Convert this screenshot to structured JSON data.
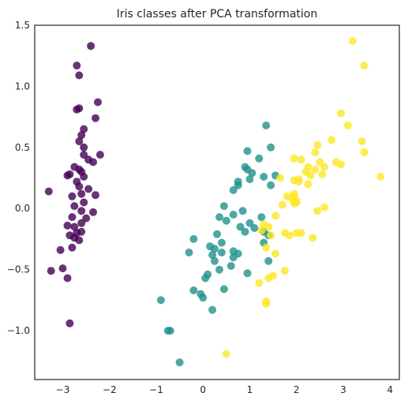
{
  "chart_data": {
    "type": "scatter",
    "title": "Iris classes after PCA transformation",
    "xlabel": "",
    "ylabel": "",
    "xlim": [
      -3.6,
      4.2
    ],
    "ylim": [
      -1.4,
      1.5
    ],
    "xticks": [
      -3,
      -2,
      -1,
      0,
      1,
      2,
      3,
      4
    ],
    "yticks": [
      -1.0,
      -0.5,
      0.0,
      0.5,
      1.0,
      1.5
    ],
    "xtick_labels": [
      "−3",
      "−2",
      "−1",
      "0",
      "1",
      "2",
      "3",
      "4"
    ],
    "ytick_labels": [
      "−1.0",
      "−0.5",
      "0.0",
      "0.5",
      "1.0",
      "1.5"
    ],
    "grid": false,
    "legend": "none",
    "series": [
      {
        "color": "#440154",
        "points": [
          [
            -2.4,
            1.33
          ],
          [
            -2.7,
            1.17
          ],
          [
            -2.65,
            1.09
          ],
          [
            -2.25,
            0.87
          ],
          [
            -2.65,
            0.82
          ],
          [
            -2.7,
            0.81
          ],
          [
            -2.3,
            0.74
          ],
          [
            -2.55,
            0.65
          ],
          [
            -2.6,
            0.6
          ],
          [
            -2.65,
            0.55
          ],
          [
            -2.55,
            0.5
          ],
          [
            -2.2,
            0.44
          ],
          [
            -2.55,
            0.44
          ],
          [
            -2.45,
            0.4
          ],
          [
            -2.35,
            0.38
          ],
          [
            -2.75,
            0.34
          ],
          [
            -2.65,
            0.32
          ],
          [
            -2.6,
            0.3
          ],
          [
            -2.85,
            0.28
          ],
          [
            -2.55,
            0.26
          ],
          [
            -2.9,
            0.27
          ],
          [
            -2.7,
            0.22
          ],
          [
            -2.65,
            0.18
          ],
          [
            -2.45,
            0.16
          ],
          [
            -3.3,
            0.14
          ],
          [
            -2.6,
            0.12
          ],
          [
            -2.3,
            0.11
          ],
          [
            -2.8,
            0.1
          ],
          [
            -2.55,
            0.05
          ],
          [
            -2.75,
            0.02
          ],
          [
            -2.6,
            -0.02
          ],
          [
            -2.35,
            -0.03
          ],
          [
            -2.8,
            -0.07
          ],
          [
            -2.5,
            -0.08
          ],
          [
            -2.6,
            -0.12
          ],
          [
            -2.9,
            -0.14
          ],
          [
            -2.75,
            -0.15
          ],
          [
            -2.6,
            -0.19
          ],
          [
            -2.7,
            -0.2
          ],
          [
            -2.85,
            -0.22
          ],
          [
            -2.75,
            -0.24
          ],
          [
            -2.65,
            -0.26
          ],
          [
            -2.8,
            -0.32
          ],
          [
            -3.05,
            -0.34
          ],
          [
            -3.0,
            -0.49
          ],
          [
            -3.25,
            -0.51
          ],
          [
            -2.9,
            -0.57
          ],
          [
            -2.85,
            -0.94
          ]
        ]
      },
      {
        "color": "#21918c",
        "points": [
          [
            1.35,
            0.68
          ],
          [
            1.45,
            0.5
          ],
          [
            0.95,
            0.47
          ],
          [
            1.2,
            0.41
          ],
          [
            0.9,
            0.34
          ],
          [
            0.95,
            0.32
          ],
          [
            1.55,
            0.27
          ],
          [
            1.3,
            0.26
          ],
          [
            1.05,
            0.29
          ],
          [
            1.0,
            0.24
          ],
          [
            0.75,
            0.22
          ],
          [
            0.75,
            0.19
          ],
          [
            1.45,
            0.19
          ],
          [
            0.65,
            0.15
          ],
          [
            0.45,
            0.02
          ],
          [
            0.85,
            -0.02
          ],
          [
            0.65,
            -0.05
          ],
          [
            0.35,
            -0.07
          ],
          [
            1.25,
            -0.07
          ],
          [
            0.5,
            -0.1
          ],
          [
            1.0,
            -0.12
          ],
          [
            0.8,
            -0.15
          ],
          [
            1.1,
            -0.16
          ],
          [
            0.9,
            -0.19
          ],
          [
            1.3,
            -0.19
          ],
          [
            1.4,
            -0.22
          ],
          [
            0.3,
            -0.21
          ],
          [
            -0.2,
            -0.25
          ],
          [
            0.4,
            -0.28
          ],
          [
            1.3,
            -0.28
          ],
          [
            0.15,
            -0.31
          ],
          [
            0.25,
            -0.33
          ],
          [
            0.4,
            -0.36
          ],
          [
            0.65,
            -0.35
          ],
          [
            -0.3,
            -0.36
          ],
          [
            0.2,
            -0.38
          ],
          [
            0.75,
            -0.37
          ],
          [
            0.65,
            -0.4
          ],
          [
            0.25,
            -0.43
          ],
          [
            1.4,
            -0.43
          ],
          [
            0.6,
            -0.47
          ],
          [
            0.35,
            -0.5
          ],
          [
            0.1,
            -0.54
          ],
          [
            0.95,
            -0.53
          ],
          [
            0.05,
            -0.57
          ],
          [
            0.45,
            -0.66
          ],
          [
            -0.2,
            -0.67
          ],
          [
            -0.05,
            -0.7
          ],
          [
            0.0,
            -0.73
          ],
          [
            -0.9,
            -0.75
          ],
          [
            0.2,
            -0.83
          ],
          [
            -0.7,
            -1.0
          ],
          [
            -0.75,
            -1.0
          ],
          [
            -0.5,
            -1.26
          ]
        ]
      },
      {
        "color": "#fde725",
        "points": [
          [
            3.2,
            1.37
          ],
          [
            3.45,
            1.17
          ],
          [
            2.95,
            0.78
          ],
          [
            3.1,
            0.68
          ],
          [
            2.75,
            0.56
          ],
          [
            3.4,
            0.55
          ],
          [
            2.45,
            0.52
          ],
          [
            2.4,
            0.46
          ],
          [
            3.45,
            0.46
          ],
          [
            2.1,
            0.4
          ],
          [
            1.95,
            0.41
          ],
          [
            2.5,
            0.38
          ],
          [
            2.85,
            0.38
          ],
          [
            2.95,
            0.36
          ],
          [
            2.25,
            0.34
          ],
          [
            2.4,
            0.32
          ],
          [
            2.2,
            0.3
          ],
          [
            2.6,
            0.34
          ],
          [
            2.55,
            0.28
          ],
          [
            2.3,
            0.27
          ],
          [
            1.65,
            0.25
          ],
          [
            3.8,
            0.26
          ],
          [
            2.05,
            0.24
          ],
          [
            1.95,
            0.23
          ],
          [
            2.05,
            0.22
          ],
          [
            2.25,
            0.2
          ],
          [
            1.95,
            0.12
          ],
          [
            1.95,
            0.1
          ],
          [
            1.8,
            0.1
          ],
          [
            2.0,
            0.06
          ],
          [
            1.95,
            0.04
          ],
          [
            2.0,
            0.05
          ],
          [
            1.9,
            0.08
          ],
          [
            1.7,
            0.03
          ],
          [
            2.6,
            0.01
          ],
          [
            2.45,
            -0.02
          ],
          [
            1.55,
            -0.06
          ],
          [
            1.3,
            -0.13
          ],
          [
            1.4,
            -0.15
          ],
          [
            1.25,
            -0.18
          ],
          [
            1.45,
            -0.22
          ],
          [
            1.75,
            -0.2
          ],
          [
            2.0,
            -0.2
          ],
          [
            2.1,
            -0.2
          ],
          [
            1.85,
            -0.22
          ],
          [
            2.35,
            -0.24
          ],
          [
            1.35,
            -0.32
          ],
          [
            1.55,
            -0.37
          ],
          [
            1.75,
            -0.51
          ],
          [
            1.5,
            -0.55
          ],
          [
            1.4,
            -0.57
          ],
          [
            1.2,
            -0.61
          ],
          [
            1.35,
            -0.76
          ],
          [
            1.35,
            -0.78
          ],
          [
            0.5,
            -1.19
          ]
        ]
      }
    ]
  }
}
